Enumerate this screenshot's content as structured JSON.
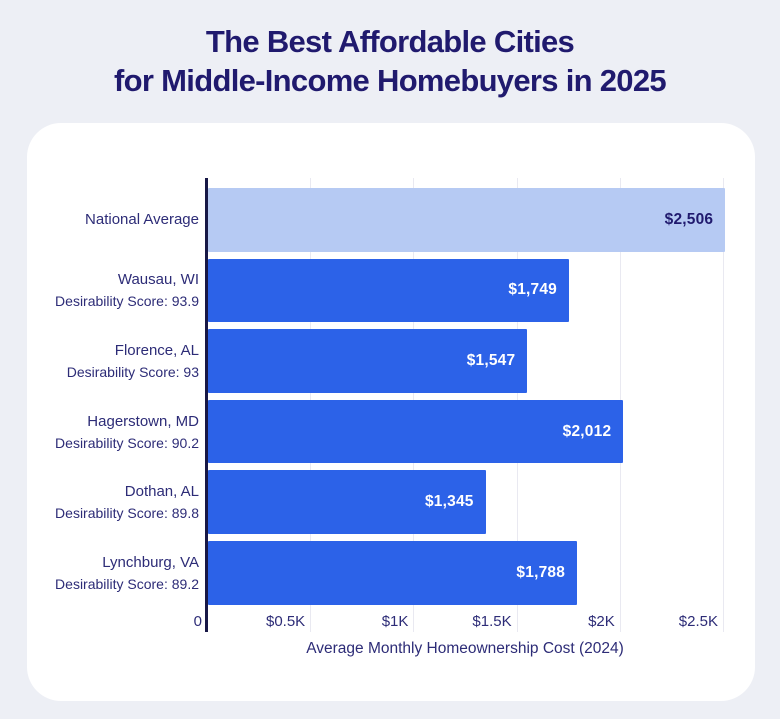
{
  "title": {
    "line1": "The Best Affordable Cities",
    "line2": "for Middle-Income Homebuyers in 2025"
  },
  "colors": {
    "background": "#edeff5",
    "card": "#ffffff",
    "title_navy": "#201a6e",
    "text_navy": "#2d2c77",
    "bar_blue": "#2c62e8",
    "bar_light_blue": "#b6caf3",
    "gridline": "#e9e9f1",
    "axis_line": "#181846",
    "value_on_blue": "#ffffff"
  },
  "chart_data": {
    "type": "bar",
    "orientation": "horizontal",
    "title": "The Best Affordable Cities for Middle-Income Homebuyers in 2025",
    "xlabel": "Average Monthly Homeownership Cost (2024)",
    "xlim": [
      0,
      2500
    ],
    "grid": "vertical-gridlines",
    "legend": "none",
    "xticks": [
      {
        "value": 0,
        "label": "0"
      },
      {
        "value": 500,
        "label": "$0.5K"
      },
      {
        "value": 1000,
        "label": "$1K"
      },
      {
        "value": 1500,
        "label": "$1.5K"
      },
      {
        "value": 2000,
        "label": "$2K"
      },
      {
        "value": 2500,
        "label": "$2.5K"
      }
    ],
    "rows": [
      {
        "label": "National Average",
        "sublabel": "",
        "value": 2506,
        "value_label": "$2,506",
        "highlight": true
      },
      {
        "label": "Wausau, WI",
        "sublabel": "Desirability Score: 93.9",
        "value": 1749,
        "value_label": "$1,749",
        "highlight": false
      },
      {
        "label": "Florence, AL",
        "sublabel": "Desirability Score: 93",
        "value": 1547,
        "value_label": "$1,547",
        "highlight": false
      },
      {
        "label": "Hagerstown, MD",
        "sublabel": "Desirability Score: 90.2",
        "value": 2012,
        "value_label": "$2,012",
        "highlight": false
      },
      {
        "label": "Dothan, AL",
        "sublabel": "Desirability Score: 89.8",
        "value": 1345,
        "value_label": "$1,345",
        "highlight": false
      },
      {
        "label": "Lynchburg, VA",
        "sublabel": "Desirability Score: 89.2",
        "value": 1788,
        "value_label": "$1,788",
        "highlight": false
      }
    ]
  }
}
